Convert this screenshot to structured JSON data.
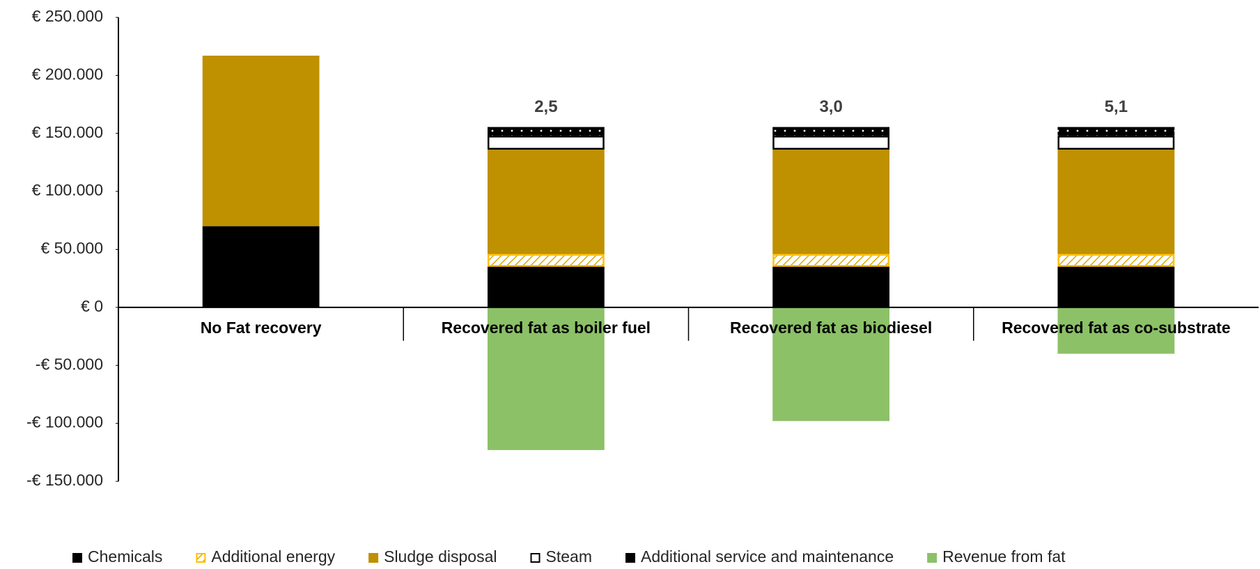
{
  "chart_data": {
    "type": "stacked_bar",
    "categories": [
      "No Fat recovery",
      "Recovered fat as boiler fuel",
      "Recovered fat as biodiesel",
      "Recovered fat as co-substrate"
    ],
    "series": [
      {
        "name": "Chemicals",
        "color": "#000000",
        "values": [
          70000,
          35000,
          35000,
          35000
        ]
      },
      {
        "name": "Additional energy",
        "color": "#ffc000",
        "pattern": "hatch",
        "values": [
          null,
          11000,
          11000,
          11000
        ]
      },
      {
        "name": "Sludge disposal",
        "color": "#bf9000",
        "values": [
          147000,
          90000,
          90000,
          90000
        ]
      },
      {
        "name": "Steam",
        "color": "#ffffff",
        "pattern": "outline",
        "values": [
          null,
          12000,
          12000,
          12000
        ]
      },
      {
        "name": "Additional service and maintenance",
        "color": "#000000",
        "pattern": "dots",
        "values": [
          null,
          7500,
          7500,
          7500
        ]
      },
      {
        "name": "Revenue from fat",
        "color": "#8cc168",
        "values": [
          null,
          -123000,
          -98000,
          -40000
        ]
      }
    ],
    "bar_top_labels": [
      null,
      "2,5",
      "3,0",
      "5,1"
    ],
    "ylim": [
      -150000,
      250000
    ],
    "yticks": [
      {
        "value": -150000,
        "label": "-€ 150.000"
      },
      {
        "value": -100000,
        "label": "-€ 100.000"
      },
      {
        "value": -50000,
        "label": "-€ 50.000"
      },
      {
        "value": 0,
        "label": "€ 0"
      },
      {
        "value": 50000,
        "label": "€ 50.000"
      },
      {
        "value": 100000,
        "label": "€ 100.000"
      },
      {
        "value": 150000,
        "label": "€ 150.000"
      },
      {
        "value": 200000,
        "label": "€ 200.000"
      },
      {
        "value": 250000,
        "label": "€ 250.000"
      }
    ],
    "grid": false,
    "legend": "bottom"
  }
}
